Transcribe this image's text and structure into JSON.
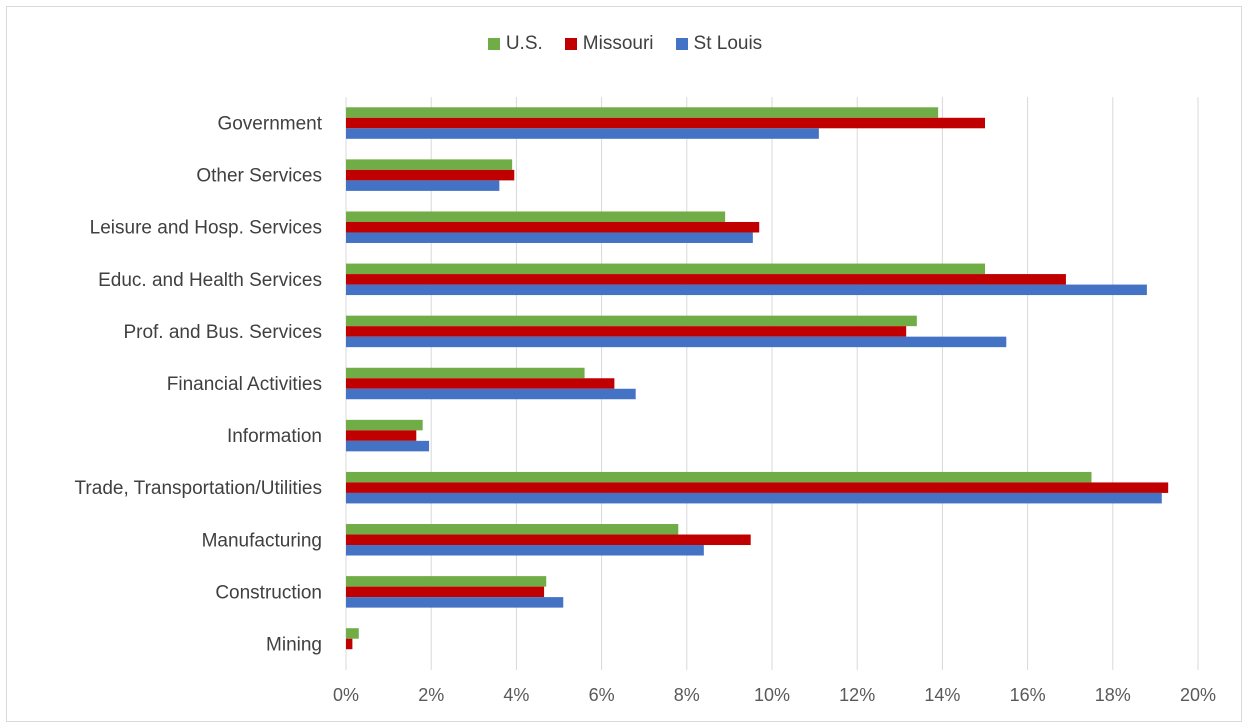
{
  "chart_data": {
    "type": "bar",
    "orientation": "horizontal",
    "categories": [
      "Government",
      "Other Services",
      "Leisure and Hosp. Services",
      "Educ. and Health Services",
      "Prof. and Bus. Services",
      "Financial Activities",
      "Information",
      "Trade, Transportation/Utilities",
      "Manufacturing",
      "Construction",
      "Mining"
    ],
    "series": [
      {
        "name": "U.S.",
        "color": "#70ad47",
        "values": [
          13.9,
          3.9,
          8.9,
          15.0,
          13.4,
          5.6,
          1.8,
          17.5,
          7.8,
          4.7,
          0.3
        ]
      },
      {
        "name": "Missouri",
        "color": "#c00000",
        "values": [
          15.0,
          3.95,
          9.7,
          16.9,
          13.15,
          6.3,
          1.65,
          19.3,
          9.5,
          4.65,
          0.15
        ]
      },
      {
        "name": "St Louis",
        "color": "#4472c4",
        "values": [
          11.1,
          3.6,
          9.55,
          18.8,
          15.5,
          6.8,
          1.95,
          19.15,
          8.4,
          5.1,
          0.0
        ]
      }
    ],
    "xlim": [
      0,
      20
    ],
    "xticks": [
      "0%",
      "2%",
      "4%",
      "6%",
      "8%",
      "10%",
      "12%",
      "14%",
      "16%",
      "18%",
      "20%"
    ],
    "grid": true,
    "legend": "top-center"
  }
}
